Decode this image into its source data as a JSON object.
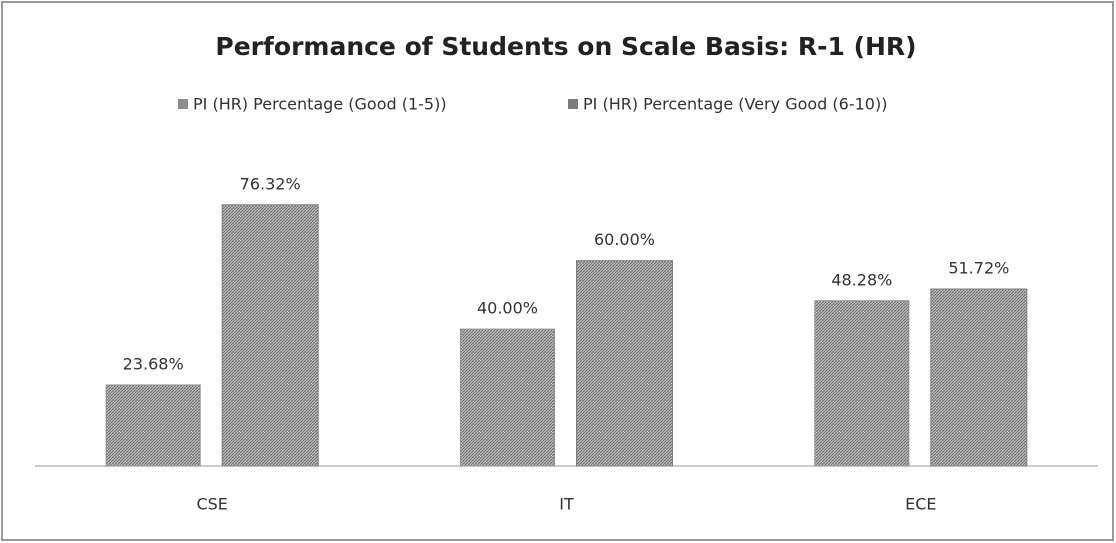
{
  "chart_data": {
    "type": "bar",
    "title": "Performance of Students on Scale Basis: R-1 (HR)",
    "categories": [
      "CSE",
      "IT",
      "ECE"
    ],
    "series": [
      {
        "name": "PI (HR) Percentage (Good (1-5))",
        "color": "#8e8e8e",
        "values": [
          23.68,
          40.0,
          48.28
        ],
        "value_labels": [
          "23.68%",
          "40.00%",
          "48.28%"
        ]
      },
      {
        "name": "PI (HR) Percentage (Very Good (6-10))",
        "color": "#7c7c7c",
        "values": [
          76.32,
          60.0,
          51.72
        ],
        "value_labels": [
          "76.32%",
          "60.00%",
          "51.72%"
        ]
      }
    ],
    "ylim": [
      0,
      90
    ],
    "legend": "top"
  }
}
